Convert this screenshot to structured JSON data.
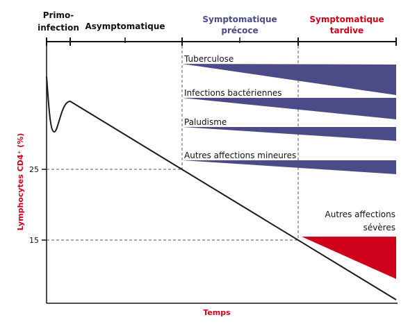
{
  "colors": {
    "background": "#ffffff",
    "axis": "#111111",
    "curve": "#1a1a1a",
    "phase_black": "#111111",
    "phase_blue": "#4a4a8a",
    "phase_red": "#d0021b",
    "wedge_blue": "#4b4b88",
    "wedge_red": "#d0021b",
    "axis_title": "#d0021b",
    "dashed": "#555555"
  },
  "phases": [
    {
      "line1": "Primo-",
      "line2": "infection",
      "tone": "black"
    },
    {
      "line1": "Asymptomatique",
      "line2": "",
      "tone": "black"
    },
    {
      "line1": "Symptomatique",
      "line2": "précoce",
      "tone": "blue"
    },
    {
      "line1": "Symptomatique",
      "line2": "tardive",
      "tone": "red"
    }
  ],
  "conditions": [
    {
      "label": "Tuberculose",
      "color": "blue"
    },
    {
      "label": "Infections bactériennes",
      "color": "blue"
    },
    {
      "label": "Paludisme",
      "color": "blue"
    },
    {
      "label": "Autres affections mineures",
      "color": "blue"
    }
  ],
  "severe": {
    "line1": "Autres affections",
    "line2": "sévères",
    "color": "red"
  },
  "y_axis": {
    "title": "Lymphocytes CD4⁺ (%)",
    "ticks": [
      {
        "value": 25,
        "label": "25"
      },
      {
        "value": 15,
        "label": "15"
      }
    ]
  },
  "x_axis": {
    "title": "Temps"
  }
}
